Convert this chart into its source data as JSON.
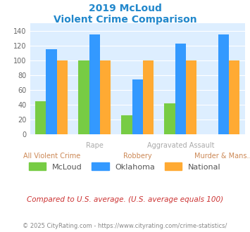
{
  "title_line1": "2019 McLoud",
  "title_line2": "Violent Crime Comparison",
  "categories": [
    "All Violent Crime",
    "Rape",
    "Robbery",
    "Aggravated Assault",
    "Murder & Mans..."
  ],
  "mcloud": [
    45,
    100,
    26,
    42,
    0
  ],
  "oklahoma": [
    115,
    135,
    74,
    123,
    135
  ],
  "national": [
    100,
    100,
    100,
    100,
    100
  ],
  "mcloud_color": "#77cc44",
  "oklahoma_color": "#3399ff",
  "national_color": "#ffaa33",
  "title_color": "#2288cc",
  "ylim": [
    0,
    150
  ],
  "yticks": [
    0,
    20,
    40,
    60,
    80,
    100,
    120,
    140
  ],
  "background_color": "#ddeeff",
  "footer_text": "Compared to U.S. average. (U.S. average equals 100)",
  "copyright_text": "© 2025 CityRating.com - https://www.cityrating.com/crime-statistics/",
  "legend_labels": [
    "McLoud",
    "Oklahoma",
    "National"
  ],
  "bar_width": 0.25,
  "xlabel_top_color": "#aaaaaa",
  "xlabel_bottom_color": "#cc8855",
  "footer_color": "#cc3333",
  "copyright_color": "#888888"
}
